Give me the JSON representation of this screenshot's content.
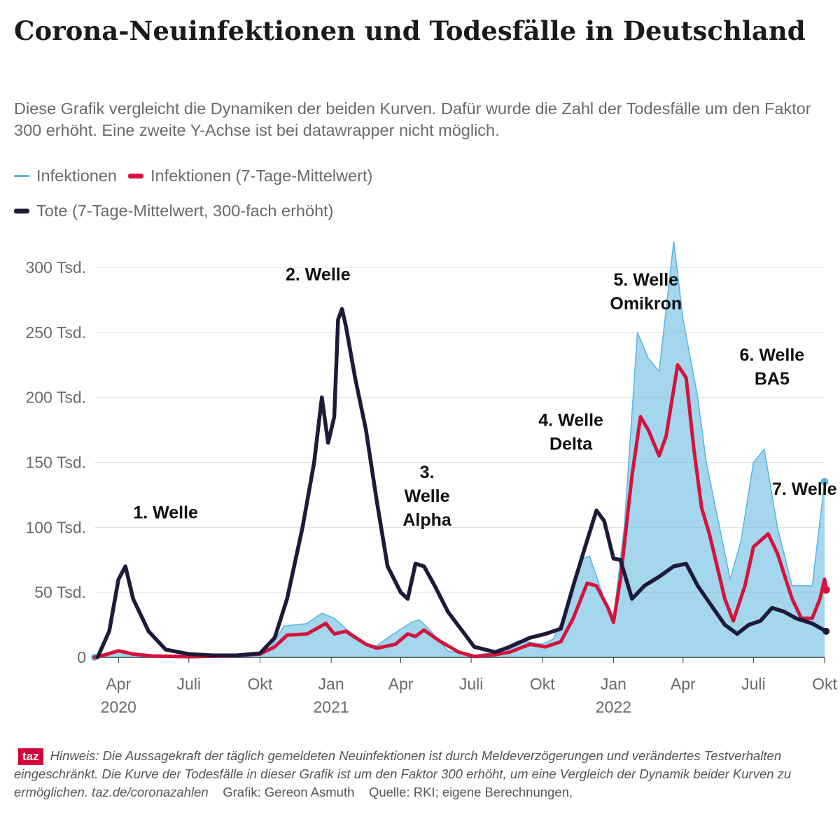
{
  "title": "Corona-Neuinfektionen und Todesfälle in Deutschland",
  "subtitle": "Diese Grafik vergleicht die Dynamiken der beiden Kurven. Dafür wurde die Zahl der Todesfälle um den Faktor 300 erhöht. Eine zweite Y-Achse ist bei datawrapper nicht möglich.",
  "colors": {
    "infections": "#5ab4e0",
    "infections_avg": "#d4133b",
    "deaths": "#1e1a3a",
    "grid": "#e0e0e0",
    "axis_text": "#6a6a6a"
  },
  "legend": {
    "infections": "Infektionen",
    "infections_avg": "Infektionen (7-Tage-Mittelwert)",
    "deaths": "Tote (7-Tage-Mittelwert, 300-fach erhöht)"
  },
  "footer": {
    "logo": "taz",
    "note": "Hinweis: Die Aussagekraft der täglich gemeldeten Neuinfektionen ist durch Meldeverzögerungen und verändertes Testverhalten eingeschränkt. Die Kurve der Todesfälle in dieser Grafik ist um den Faktor 300 erhöht, um eine Vergleich der Dynamik beider Kurven zu ermöglichen. taz.de/coronazahlen",
    "credit": "Grafik: Gereon Asmuth",
    "source": "Quelle: RKI; eigene Berechnungen,"
  },
  "chart_data": {
    "type": "line",
    "x_unit": "month",
    "xlim": [
      "2020-03",
      "2022-10"
    ],
    "ylim": [
      0,
      300000
    ],
    "grid": true,
    "legend_position": "top",
    "y_ticks": [
      {
        "value": 0,
        "label": "0"
      },
      {
        "value": 50000,
        "label": "50 Tsd."
      },
      {
        "value": 100000,
        "label": "100 Tsd."
      },
      {
        "value": 150000,
        "label": "150 Tsd."
      },
      {
        "value": 200000,
        "label": "200 Tsd."
      },
      {
        "value": 250000,
        "label": "250 Tsd."
      },
      {
        "value": 300000,
        "label": "300 Tsd."
      }
    ],
    "x_ticks": [
      {
        "date": "2020-04",
        "label": "Apr",
        "year": "2020"
      },
      {
        "date": "2020-07",
        "label": "Juli",
        "year": ""
      },
      {
        "date": "2020-10",
        "label": "Okt",
        "year": ""
      },
      {
        "date": "2021-01",
        "label": "Jan",
        "year": "2021"
      },
      {
        "date": "2021-04",
        "label": "Apr",
        "year": ""
      },
      {
        "date": "2021-07",
        "label": "Juli",
        "year": ""
      },
      {
        "date": "2021-10",
        "label": "Okt",
        "year": ""
      },
      {
        "date": "2022-01",
        "label": "Jan",
        "year": "2022"
      },
      {
        "date": "2022-04",
        "label": "Apr",
        "year": ""
      },
      {
        "date": "2022-07",
        "label": "Juli",
        "year": ""
      },
      {
        "date": "2022-10",
        "label": "Okt",
        "year": ""
      }
    ],
    "series": [
      {
        "name": "Infektionen",
        "key": "infections",
        "points": [
          [
            "2020-03-01",
            0
          ],
          [
            "2020-03-20",
            2000
          ],
          [
            "2020-04-01",
            5000
          ],
          [
            "2020-04-15",
            3000
          ],
          [
            "2020-05-01",
            1000
          ],
          [
            "2020-06-01",
            500
          ],
          [
            "2020-07-01",
            500
          ],
          [
            "2020-08-01",
            1500
          ],
          [
            "2020-09-01",
            2000
          ],
          [
            "2020-10-01",
            3000
          ],
          [
            "2020-10-15",
            8000
          ],
          [
            "2020-11-01",
            24000
          ],
          [
            "2020-12-01",
            26000
          ],
          [
            "2020-12-20",
            34000
          ],
          [
            "2021-01-05",
            30000
          ],
          [
            "2021-01-20",
            22000
          ],
          [
            "2021-02-15",
            10000
          ],
          [
            "2021-03-01",
            9000
          ],
          [
            "2021-03-20",
            17000
          ],
          [
            "2021-04-15",
            27000
          ],
          [
            "2021-04-25",
            29000
          ],
          [
            "2021-05-10",
            20000
          ],
          [
            "2021-06-01",
            5000
          ],
          [
            "2021-07-01",
            1000
          ],
          [
            "2021-08-01",
            4000
          ],
          [
            "2021-09-01",
            13000
          ],
          [
            "2021-10-01",
            10000
          ],
          [
            "2021-10-15",
            14000
          ],
          [
            "2021-11-01",
            35000
          ],
          [
            "2021-11-20",
            75000
          ],
          [
            "2021-12-01",
            78000
          ],
          [
            "2021-12-20",
            45000
          ],
          [
            "2022-01-01",
            30000
          ],
          [
            "2022-01-15",
            100000
          ],
          [
            "2022-02-01",
            250000
          ],
          [
            "2022-02-15",
            230000
          ],
          [
            "2022-03-01",
            220000
          ],
          [
            "2022-03-20",
            320000
          ],
          [
            "2022-04-01",
            260000
          ],
          [
            "2022-04-20",
            200000
          ],
          [
            "2022-05-01",
            150000
          ],
          [
            "2022-06-01",
            60000
          ],
          [
            "2022-06-15",
            90000
          ],
          [
            "2022-07-01",
            150000
          ],
          [
            "2022-07-15",
            160000
          ],
          [
            "2022-08-01",
            100000
          ],
          [
            "2022-08-20",
            55000
          ],
          [
            "2022-09-15",
            55000
          ],
          [
            "2022-10-01",
            135000
          ]
        ]
      },
      {
        "name": "Infektionen (7-Tage-Mittelwert)",
        "key": "infections_avg",
        "points": [
          [
            "2020-03-01",
            0
          ],
          [
            "2020-03-15",
            2000
          ],
          [
            "2020-04-01",
            5000
          ],
          [
            "2020-04-20",
            2500
          ],
          [
            "2020-05-15",
            1000
          ],
          [
            "2020-07-01",
            500
          ],
          [
            "2020-08-15",
            1000
          ],
          [
            "2020-10-01",
            2500
          ],
          [
            "2020-10-20",
            8000
          ],
          [
            "2020-11-05",
            17000
          ],
          [
            "2020-12-01",
            18000
          ],
          [
            "2020-12-25",
            26000
          ],
          [
            "2021-01-05",
            18000
          ],
          [
            "2021-01-20",
            20000
          ],
          [
            "2021-02-15",
            10000
          ],
          [
            "2021-03-01",
            7000
          ],
          [
            "2021-03-25",
            10000
          ],
          [
            "2021-04-10",
            18000
          ],
          [
            "2021-04-20",
            16000
          ],
          [
            "2021-05-01",
            21000
          ],
          [
            "2021-05-20",
            13000
          ],
          [
            "2021-06-15",
            4000
          ],
          [
            "2021-07-05",
            700
          ],
          [
            "2021-08-01",
            2000
          ],
          [
            "2021-08-20",
            4000
          ],
          [
            "2021-09-15",
            10000
          ],
          [
            "2021-10-05",
            8000
          ],
          [
            "2021-10-25",
            12000
          ],
          [
            "2021-11-10",
            30000
          ],
          [
            "2021-11-28",
            57000
          ],
          [
            "2021-12-10",
            55000
          ],
          [
            "2021-12-25",
            38000
          ],
          [
            "2022-01-01",
            27000
          ],
          [
            "2022-01-10",
            60000
          ],
          [
            "2022-01-25",
            140000
          ],
          [
            "2022-02-05",
            185000
          ],
          [
            "2022-02-15",
            175000
          ],
          [
            "2022-03-01",
            155000
          ],
          [
            "2022-03-10",
            170000
          ],
          [
            "2022-03-25",
            225000
          ],
          [
            "2022-04-05",
            215000
          ],
          [
            "2022-04-15",
            160000
          ],
          [
            "2022-04-25",
            115000
          ],
          [
            "2022-05-05",
            95000
          ],
          [
            "2022-05-25",
            45000
          ],
          [
            "2022-06-05",
            28000
          ],
          [
            "2022-06-20",
            55000
          ],
          [
            "2022-07-01",
            85000
          ],
          [
            "2022-07-20",
            95000
          ],
          [
            "2022-08-01",
            80000
          ],
          [
            "2022-08-20",
            45000
          ],
          [
            "2022-09-01",
            30000
          ],
          [
            "2022-09-15",
            30000
          ],
          [
            "2022-09-25",
            45000
          ],
          [
            "2022-10-01",
            60000
          ],
          [
            "2022-10-03",
            52000
          ]
        ]
      },
      {
        "name": "Tote (7-Tage-Mittelwert, 300-fach erhöht)",
        "key": "deaths",
        "points": [
          [
            "2020-03-05",
            0
          ],
          [
            "2020-03-20",
            20000
          ],
          [
            "2020-04-01",
            60000
          ],
          [
            "2020-04-10",
            70000
          ],
          [
            "2020-04-20",
            45000
          ],
          [
            "2020-05-10",
            20000
          ],
          [
            "2020-06-01",
            6000
          ],
          [
            "2020-07-01",
            2500
          ],
          [
            "2020-08-01",
            1500
          ],
          [
            "2020-09-01",
            1500
          ],
          [
            "2020-10-01",
            3000
          ],
          [
            "2020-10-20",
            15000
          ],
          [
            "2020-11-05",
            45000
          ],
          [
            "2020-11-25",
            100000
          ],
          [
            "2020-12-10",
            150000
          ],
          [
            "2020-12-20",
            200000
          ],
          [
            "2020-12-28",
            165000
          ],
          [
            "2021-01-05",
            185000
          ],
          [
            "2021-01-10",
            260000
          ],
          [
            "2021-01-15",
            268000
          ],
          [
            "2021-01-20",
            255000
          ],
          [
            "2021-02-01",
            215000
          ],
          [
            "2021-02-15",
            175000
          ],
          [
            "2021-03-01",
            120000
          ],
          [
            "2021-03-15",
            70000
          ],
          [
            "2021-04-01",
            50000
          ],
          [
            "2021-04-10",
            45000
          ],
          [
            "2021-04-20",
            72000
          ],
          [
            "2021-05-01",
            70000
          ],
          [
            "2021-05-15",
            55000
          ],
          [
            "2021-06-01",
            35000
          ],
          [
            "2021-06-20",
            20000
          ],
          [
            "2021-07-05",
            8000
          ],
          [
            "2021-08-01",
            4000
          ],
          [
            "2021-08-20",
            8000
          ],
          [
            "2021-09-15",
            15000
          ],
          [
            "2021-10-05",
            18000
          ],
          [
            "2021-10-25",
            22000
          ],
          [
            "2021-11-10",
            55000
          ],
          [
            "2021-11-28",
            90000
          ],
          [
            "2021-12-10",
            113000
          ],
          [
            "2021-12-20",
            105000
          ],
          [
            "2022-01-01",
            76000
          ],
          [
            "2022-01-10",
            75000
          ],
          [
            "2022-01-25",
            45000
          ],
          [
            "2022-02-10",
            55000
          ],
          [
            "2022-03-01",
            62000
          ],
          [
            "2022-03-20",
            70000
          ],
          [
            "2022-04-05",
            72000
          ],
          [
            "2022-04-20",
            55000
          ],
          [
            "2022-05-05",
            42000
          ],
          [
            "2022-05-25",
            25000
          ],
          [
            "2022-06-10",
            18000
          ],
          [
            "2022-06-25",
            25000
          ],
          [
            "2022-07-10",
            28000
          ],
          [
            "2022-07-25",
            38000
          ],
          [
            "2022-08-10",
            35000
          ],
          [
            "2022-08-25",
            30000
          ],
          [
            "2022-09-15",
            26000
          ],
          [
            "2022-10-03",
            20000
          ]
        ]
      }
    ],
    "annotations": [
      {
        "date": "2020-06-01",
        "y": 107000,
        "lines": [
          "1. Welle"
        ]
      },
      {
        "date": "2020-12-15",
        "y": 290000,
        "lines": [
          "2. Welle"
        ]
      },
      {
        "date": "2021-05-05",
        "y": 138000,
        "lines": [
          "3.",
          "Welle",
          "Alpha"
        ]
      },
      {
        "date": "2021-11-07",
        "y": 178000,
        "lines": [
          "4. Welle",
          "Delta"
        ]
      },
      {
        "date": "2022-02-12",
        "y": 286000,
        "lines": [
          "5. Welle",
          "Omikron"
        ]
      },
      {
        "date": "2022-07-25",
        "y": 228000,
        "lines": [
          "6. Welle",
          "BA5"
        ]
      },
      {
        "date": "2022-09-05",
        "y": 125000,
        "lines": [
          "7. Welle"
        ]
      }
    ]
  }
}
